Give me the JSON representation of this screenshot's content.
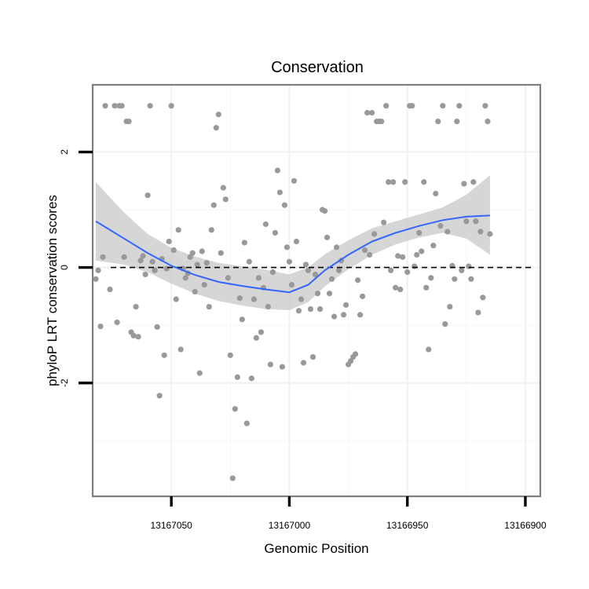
{
  "chart_data": {
    "type": "scatter",
    "title": "Conservation",
    "xlabel": "Genomic Position",
    "ylabel": "phyloP LRT conservation scores",
    "x_reversed": true,
    "xlim": [
      13167083,
      13166894
    ],
    "ylim": [
      -3.95,
      3.15
    ],
    "x_ticks": [
      13167050,
      13167000,
      13166950,
      13166900
    ],
    "x_tick_labels": [
      "13167050",
      "13167000",
      "13166950",
      "13166900"
    ],
    "y_ticks": [
      -2,
      0,
      2
    ],
    "y_tick_labels": [
      "-2",
      "0",
      "2"
    ],
    "grid": true,
    "reference_line": {
      "y": 0,
      "style": "dashed"
    },
    "colors": {
      "points": "#999999",
      "smooth": "#3366ff",
      "band": "#c8c8c8",
      "frame": "#7f7f7f"
    },
    "points": [
      {
        "x": 13167082,
        "y": -0.2
      },
      {
        "x": 13167081,
        "y": -0.05
      },
      {
        "x": 13167080,
        "y": -1.02
      },
      {
        "x": 13167079,
        "y": 0.18
      },
      {
        "x": 13167078,
        "y": 2.8
      },
      {
        "x": 13167076,
        "y": -0.38
      },
      {
        "x": 13167074,
        "y": 2.8
      },
      {
        "x": 13167073,
        "y": -0.95
      },
      {
        "x": 13167072,
        "y": 2.8
      },
      {
        "x": 13167071,
        "y": 2.8
      },
      {
        "x": 13167070,
        "y": 0.18
      },
      {
        "x": 13167069,
        "y": 2.53
      },
      {
        "x": 13167068,
        "y": 2.53
      },
      {
        "x": 13167067,
        "y": -1.12
      },
      {
        "x": 13167066,
        "y": -1.18
      },
      {
        "x": 13167065,
        "y": -0.68
      },
      {
        "x": 13167064,
        "y": -1.2
      },
      {
        "x": 13167063,
        "y": 0.12
      },
      {
        "x": 13167062,
        "y": 0.2
      },
      {
        "x": 13167061,
        "y": -0.12
      },
      {
        "x": 13167060,
        "y": 1.25
      },
      {
        "x": 13167059,
        "y": 2.8
      },
      {
        "x": 13167058,
        "y": 0.1
      },
      {
        "x": 13167057,
        "y": -0.05
      },
      {
        "x": 13167056,
        "y": -1.03
      },
      {
        "x": 13167055,
        "y": -2.22
      },
      {
        "x": 13167054,
        "y": 0.15
      },
      {
        "x": 13167053,
        "y": -1.52
      },
      {
        "x": 13167052,
        "y": -0.02
      },
      {
        "x": 13167051,
        "y": 0.45
      },
      {
        "x": 13167050,
        "y": 2.8
      },
      {
        "x": 13167049,
        "y": 0.3
      },
      {
        "x": 13167048,
        "y": -0.55
      },
      {
        "x": 13167047,
        "y": 0.65
      },
      {
        "x": 13167046,
        "y": -1.42
      },
      {
        "x": 13167045,
        "y": -0.02
      },
      {
        "x": 13167044,
        "y": -0.18
      },
      {
        "x": 13167043,
        "y": -0.1
      },
      {
        "x": 13167042,
        "y": 0.18
      },
      {
        "x": 13167041,
        "y": 0.25
      },
      {
        "x": 13167040,
        "y": -0.42
      },
      {
        "x": 13167039,
        "y": 0.05
      },
      {
        "x": 13167038,
        "y": -1.83
      },
      {
        "x": 13167037,
        "y": 0.28
      },
      {
        "x": 13167036,
        "y": -0.3
      },
      {
        "x": 13167035,
        "y": 0.08
      },
      {
        "x": 13167034,
        "y": -0.68
      },
      {
        "x": 13167033,
        "y": 0.65
      },
      {
        "x": 13167032,
        "y": 1.08
      },
      {
        "x": 13167031,
        "y": 2.42
      },
      {
        "x": 13167030,
        "y": 2.65
      },
      {
        "x": 13167029,
        "y": 0.25
      },
      {
        "x": 13167028,
        "y": 1.38
      },
      {
        "x": 13167027,
        "y": 1.18
      },
      {
        "x": 13167026,
        "y": -0.18
      },
      {
        "x": 13167025,
        "y": -1.52
      },
      {
        "x": 13167024,
        "y": -3.65
      },
      {
        "x": 13167023,
        "y": -2.45
      },
      {
        "x": 13167022,
        "y": -1.9
      },
      {
        "x": 13167021,
        "y": -0.53
      },
      {
        "x": 13167020,
        "y": -0.9
      },
      {
        "x": 13167019,
        "y": 0.43
      },
      {
        "x": 13167018,
        "y": -2.7
      },
      {
        "x": 13167017,
        "y": 0.1
      },
      {
        "x": 13167016,
        "y": -1.92
      },
      {
        "x": 13167015,
        "y": -0.55
      },
      {
        "x": 13167014,
        "y": -1.22
      },
      {
        "x": 13167013,
        "y": -0.18
      },
      {
        "x": 13167012,
        "y": -1.12
      },
      {
        "x": 13167011,
        "y": -0.35
      },
      {
        "x": 13167010,
        "y": 0.75
      },
      {
        "x": 13167009,
        "y": -0.68
      },
      {
        "x": 13167008,
        "y": -1.68
      },
      {
        "x": 13167007,
        "y": -0.08
      },
      {
        "x": 13167006,
        "y": 0.6
      },
      {
        "x": 13167005,
        "y": 1.68
      },
      {
        "x": 13167004,
        "y": 1.3
      },
      {
        "x": 13167003,
        "y": -1.72
      },
      {
        "x": 13167002,
        "y": 1.08
      },
      {
        "x": 13167001,
        "y": 0.35
      },
      {
        "x": 13167000,
        "y": 0.1
      },
      {
        "x": 13166999,
        "y": -0.3
      },
      {
        "x": 13166998,
        "y": 1.5
      },
      {
        "x": 13166997,
        "y": 0.45
      },
      {
        "x": 13166996,
        "y": -0.75
      },
      {
        "x": 13166995,
        "y": -0.55
      },
      {
        "x": 13166994,
        "y": -1.65
      },
      {
        "x": 13166993,
        "y": 0.05
      },
      {
        "x": 13166992,
        "y": -0.05
      },
      {
        "x": 13166991,
        "y": -0.72
      },
      {
        "x": 13166990,
        "y": -1.55
      },
      {
        "x": 13166989,
        "y": -0.12
      },
      {
        "x": 13166988,
        "y": -0.45
      },
      {
        "x": 13166987,
        "y": -0.72
      },
      {
        "x": 13166986,
        "y": 1.0
      },
      {
        "x": 13166985,
        "y": 0.98
      },
      {
        "x": 13166984,
        "y": 0.52
      },
      {
        "x": 13166983,
        "y": -0.45
      },
      {
        "x": 13166982,
        "y": -0.2
      },
      {
        "x": 13166981,
        "y": -0.85
      },
      {
        "x": 13166980,
        "y": 0.35
      },
      {
        "x": 13166979,
        "y": -0.05
      },
      {
        "x": 13166978,
        "y": 0.12
      },
      {
        "x": 13166977,
        "y": -0.82
      },
      {
        "x": 13166976,
        "y": -0.65
      },
      {
        "x": 13166975,
        "y": -1.68
      },
      {
        "x": 13166974,
        "y": -1.62
      },
      {
        "x": 13166973,
        "y": -1.55
      },
      {
        "x": 13166972,
        "y": -1.5
      },
      {
        "x": 13166971,
        "y": -0.22
      },
      {
        "x": 13166970,
        "y": -0.82
      },
      {
        "x": 13166969,
        "y": -0.5
      },
      {
        "x": 13166968,
        "y": 0.3
      },
      {
        "x": 13166967,
        "y": 2.68
      },
      {
        "x": 13166966,
        "y": 0.22
      },
      {
        "x": 13166965,
        "y": 2.68
      },
      {
        "x": 13166964,
        "y": 0.58
      },
      {
        "x": 13166963,
        "y": 2.53
      },
      {
        "x": 13166962,
        "y": 2.53
      },
      {
        "x": 13166961,
        "y": 2.53
      },
      {
        "x": 13166960,
        "y": 0.78
      },
      {
        "x": 13166959,
        "y": 2.8
      },
      {
        "x": 13166958,
        "y": 1.48
      },
      {
        "x": 13166957,
        "y": -0.05
      },
      {
        "x": 13166956,
        "y": 1.48
      },
      {
        "x": 13166955,
        "y": -0.35
      },
      {
        "x": 13166954,
        "y": 0.2
      },
      {
        "x": 13166953,
        "y": -0.38
      },
      {
        "x": 13166952,
        "y": 0.18
      },
      {
        "x": 13166951,
        "y": 1.48
      },
      {
        "x": 13166950,
        "y": -0.08
      },
      {
        "x": 13166949,
        "y": 2.8
      },
      {
        "x": 13166948,
        "y": 2.8
      },
      {
        "x": 13166947,
        "y": 0.02
      },
      {
        "x": 13166946,
        "y": 0.22
      },
      {
        "x": 13166945,
        "y": 0.6
      },
      {
        "x": 13166944,
        "y": 0.28
      },
      {
        "x": 13166943,
        "y": 1.48
      },
      {
        "x": 13166942,
        "y": -0.35
      },
      {
        "x": 13166941,
        "y": -1.42
      },
      {
        "x": 13166940,
        "y": -0.18
      },
      {
        "x": 13166939,
        "y": 0.38
      },
      {
        "x": 13166938,
        "y": 1.28
      },
      {
        "x": 13166937,
        "y": 2.53
      },
      {
        "x": 13166936,
        "y": 0.72
      },
      {
        "x": 13166935,
        "y": 2.8
      },
      {
        "x": 13166934,
        "y": -0.98
      },
      {
        "x": 13166933,
        "y": 0.62
      },
      {
        "x": 13166932,
        "y": -0.68
      },
      {
        "x": 13166931,
        "y": 0.03
      },
      {
        "x": 13166930,
        "y": -0.2
      },
      {
        "x": 13166929,
        "y": 2.53
      },
      {
        "x": 13166928,
        "y": 2.8
      },
      {
        "x": 13166927,
        "y": -0.05
      },
      {
        "x": 13166926,
        "y": 1.45
      },
      {
        "x": 13166925,
        "y": 0.8
      },
      {
        "x": 13166924,
        "y": 0.02
      },
      {
        "x": 13166923,
        "y": -0.2
      },
      {
        "x": 13166922,
        "y": 1.48
      },
      {
        "x": 13166921,
        "y": 0.8
      },
      {
        "x": 13166920,
        "y": -0.78
      },
      {
        "x": 13166919,
        "y": 0.62
      },
      {
        "x": 13166918,
        "y": -0.52
      },
      {
        "x": 13166917,
        "y": 2.8
      },
      {
        "x": 13166916,
        "y": 2.53
      },
      {
        "x": 13166915,
        "y": 0.58
      }
    ],
    "smooth": {
      "method": "loess",
      "x": [
        13167082,
        13167070,
        13167060,
        13167050,
        13167040,
        13167030,
        13167020,
        13167010,
        13167000,
        13166992,
        13166985,
        13166975,
        13166965,
        13166955,
        13166945,
        13166935,
        13166925,
        13166915
      ],
      "y": [
        0.8,
        0.5,
        0.25,
        0.03,
        -0.13,
        -0.25,
        -0.32,
        -0.38,
        -0.43,
        -0.3,
        -0.05,
        0.22,
        0.45,
        0.6,
        0.72,
        0.82,
        0.88,
        0.9
      ],
      "lower": [
        0.12,
        0.05,
        -0.08,
        -0.28,
        -0.45,
        -0.58,
        -0.66,
        -0.72,
        -0.74,
        -0.6,
        -0.33,
        -0.03,
        0.22,
        0.4,
        0.52,
        0.6,
        0.5,
        0.22
      ],
      "upper": [
        1.48,
        0.95,
        0.58,
        0.34,
        0.19,
        0.08,
        0.02,
        -0.04,
        -0.12,
        0.0,
        0.23,
        0.47,
        0.68,
        0.8,
        0.92,
        1.04,
        1.26,
        1.6
      ]
    }
  }
}
